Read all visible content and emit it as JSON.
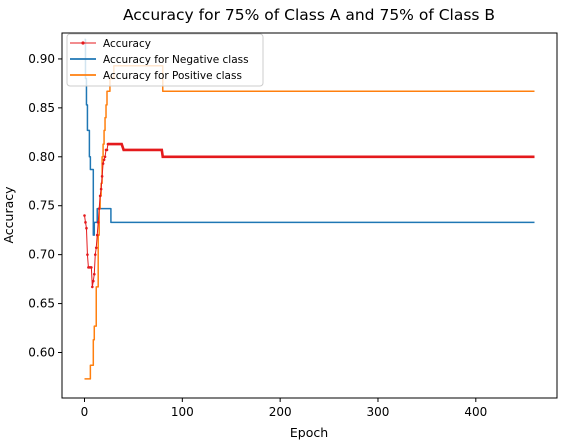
{
  "chart_data": {
    "type": "line",
    "title": "Accuracy for 75% of Class A and 75% of Class B",
    "xlabel": "Epoch",
    "ylabel": "Accuracy",
    "xlim": [
      -23,
      483
    ],
    "ylim": [
      0.5535,
      0.9265
    ],
    "xticks": [
      0,
      100,
      200,
      300,
      400
    ],
    "xtick_labels": [
      "0",
      "100",
      "200",
      "300",
      "400"
    ],
    "yticks": [
      0.6,
      0.65,
      0.7,
      0.75,
      0.8,
      0.85,
      0.9
    ],
    "ytick_labels": [
      "0.60",
      "0.65",
      "0.70",
      "0.75",
      "0.80",
      "0.85",
      "0.90"
    ],
    "legend_position": "top-left",
    "grid": false,
    "series": [
      {
        "name": "Accuracy",
        "color": "#e41a1c",
        "marker": "dot",
        "x": [
          0,
          1,
          2,
          3,
          4,
          5,
          6,
          7,
          8,
          9,
          10,
          11,
          12,
          13,
          14,
          15,
          16,
          17,
          18,
          19,
          20,
          21,
          22,
          23,
          24,
          25,
          26,
          27,
          28,
          29,
          30,
          32,
          34,
          36,
          38,
          40,
          45,
          50,
          55,
          60,
          65,
          70,
          75,
          79,
          80,
          90,
          100,
          150,
          200,
          250,
          300,
          350,
          400,
          450,
          460
        ],
        "values": [
          0.74,
          0.733,
          0.727,
          0.7,
          0.687,
          0.687,
          0.687,
          0.687,
          0.667,
          0.673,
          0.68,
          0.7,
          0.707,
          0.72,
          0.733,
          0.747,
          0.76,
          0.767,
          0.78,
          0.793,
          0.797,
          0.8,
          0.807,
          0.807,
          0.813,
          0.813,
          0.813,
          0.813,
          0.813,
          0.813,
          0.813,
          0.813,
          0.813,
          0.813,
          0.813,
          0.807,
          0.807,
          0.807,
          0.807,
          0.807,
          0.807,
          0.807,
          0.807,
          0.807,
          0.8,
          0.8,
          0.8,
          0.8,
          0.8,
          0.8,
          0.8,
          0.8,
          0.8,
          0.8,
          0.8
        ]
      },
      {
        "name": "Accuracy for Negative class",
        "color": "#1f77b4",
        "marker": "none",
        "x": [
          0,
          1,
          2,
          3,
          4,
          5,
          6,
          7,
          8,
          9,
          10,
          11,
          12,
          13,
          14,
          15,
          20,
          25,
          26,
          27,
          30,
          40,
          60,
          80,
          100,
          200,
          300,
          400,
          460
        ],
        "values": [
          0.92,
          0.88,
          0.853,
          0.827,
          0.827,
          0.8,
          0.787,
          0.787,
          0.787,
          0.72,
          0.733,
          0.733,
          0.733,
          0.747,
          0.747,
          0.747,
          0.747,
          0.747,
          0.747,
          0.733,
          0.733,
          0.733,
          0.733,
          0.733,
          0.733,
          0.733,
          0.733,
          0.733,
          0.733
        ]
      },
      {
        "name": "Accuracy for Positive class",
        "color": "#ff7f0e",
        "marker": "none",
        "x": [
          0,
          3,
          5,
          6,
          8,
          9,
          10,
          12,
          13,
          14,
          15,
          16,
          17,
          18,
          19,
          20,
          21,
          22,
          23,
          24,
          26,
          28,
          30,
          32,
          35,
          40,
          50,
          60,
          70,
          79,
          80,
          90,
          100,
          200,
          300,
          400,
          460
        ],
        "values": [
          0.573,
          0.573,
          0.573,
          0.587,
          0.587,
          0.613,
          0.627,
          0.667,
          0.667,
          0.72,
          0.747,
          0.76,
          0.773,
          0.8,
          0.813,
          0.827,
          0.84,
          0.853,
          0.867,
          0.867,
          0.88,
          0.88,
          0.893,
          0.893,
          0.893,
          0.893,
          0.893,
          0.893,
          0.893,
          0.893,
          0.867,
          0.867,
          0.867,
          0.867,
          0.867,
          0.867,
          0.867
        ]
      }
    ]
  }
}
